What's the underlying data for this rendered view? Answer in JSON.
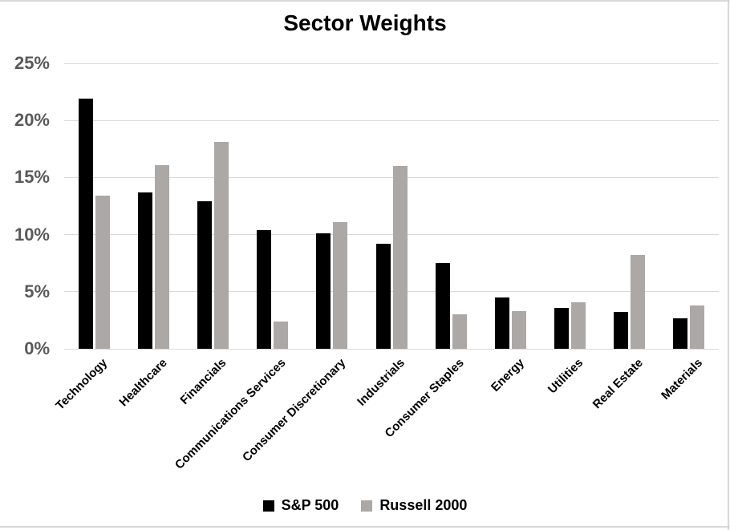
{
  "chart_data": {
    "type": "bar",
    "title": "Sector Weights",
    "categories": [
      "Technology",
      "Healthcare",
      "Financials",
      "Communications Services",
      "Consumer Discretionary",
      "Industrials",
      "Consumer Staples",
      "Energy",
      "Utilities",
      "Real Estate",
      "Materials"
    ],
    "series": [
      {
        "name": "S&P 500",
        "color": "#000000",
        "values": [
          21.9,
          13.7,
          12.9,
          10.4,
          10.1,
          9.2,
          7.5,
          4.5,
          3.6,
          3.2,
          2.7
        ]
      },
      {
        "name": "Russell 2000",
        "color": "#aba8a6",
        "values": [
          13.4,
          16.1,
          18.1,
          2.4,
          11.1,
          16.0,
          3.0,
          3.3,
          4.1,
          8.2,
          3.8
        ]
      }
    ],
    "xlabel": "",
    "ylabel": "",
    "ylim": [
      0,
      25
    ],
    "ytick_step": 5,
    "ytick_labels": [
      "0%",
      "5%",
      "10%",
      "15%",
      "20%",
      "25%"
    ],
    "grid": true,
    "legend_position": "bottom"
  },
  "colors": {
    "background": "#ffffff",
    "gridline": "#d9d9d9",
    "axis_tick_label": "#595959",
    "category_label": "#000000",
    "frame_border": "#d8d8d8"
  }
}
